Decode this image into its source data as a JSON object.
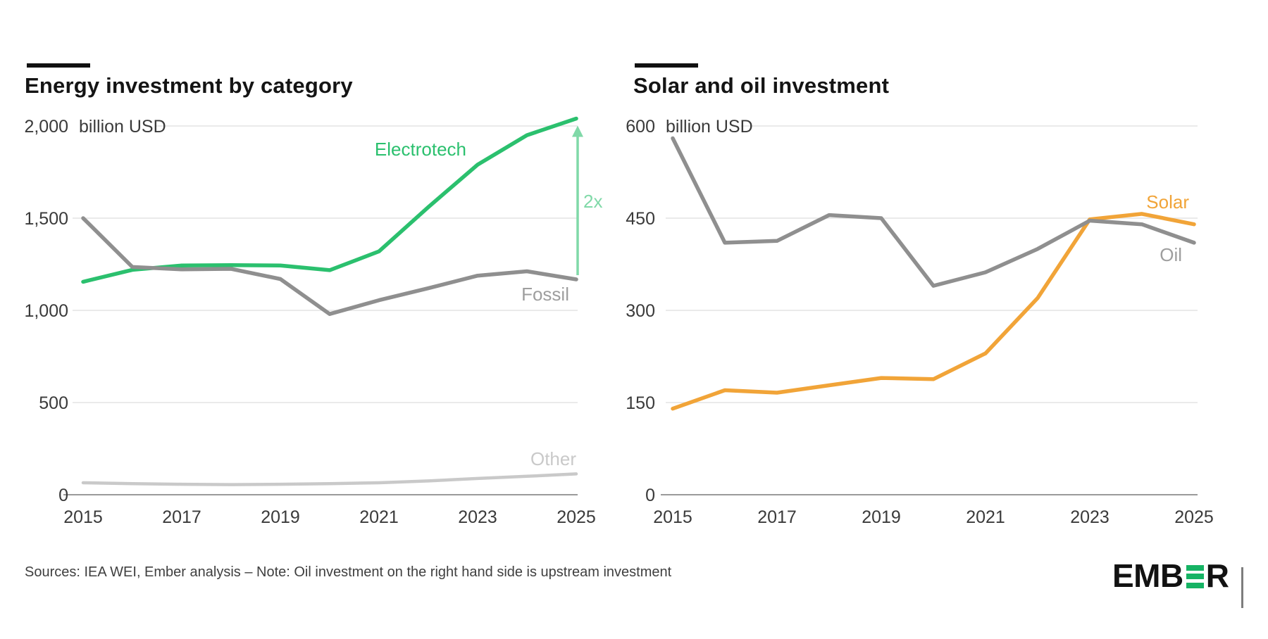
{
  "chart_data": [
    {
      "type": "line",
      "title": "Energy investment by category",
      "unit": "billion USD",
      "x": [
        2015,
        2016,
        2017,
        2018,
        2019,
        2020,
        2021,
        2022,
        2023,
        2024,
        2025
      ],
      "x_tick_labels": [
        "2015",
        "2017",
        "2019",
        "2021",
        "2023",
        "2025"
      ],
      "y_ticks": [
        {
          "v": 0,
          "label": "0"
        },
        {
          "v": 500,
          "label": "500"
        },
        {
          "v": 1000,
          "label": "1,000"
        },
        {
          "v": 1500,
          "label": "1,500"
        },
        {
          "v": 2000,
          "label": "2,000"
        }
      ],
      "ylim": [
        0,
        2000
      ],
      "grid": true,
      "legend_position": "inline-labels",
      "series": [
        {
          "name": "Electrotech",
          "line_color": "#2bc06e",
          "label_color": "#2bc06e",
          "values": [
            1155,
            1220,
            1243,
            1245,
            1243,
            1218,
            1320,
            1560,
            1790,
            1950,
            2040
          ]
        },
        {
          "name": "Fossil",
          "line_color": "#8f8f8f",
          "label_color": "#9e9e9e",
          "values": [
            1500,
            1235,
            1222,
            1225,
            1170,
            980,
            1055,
            1120,
            1188,
            1212,
            1168
          ]
        },
        {
          "name": "Other",
          "line_color": "#c9c9c9",
          "label_color": "#c9c9c9",
          "values": [
            65,
            60,
            57,
            55,
            57,
            60,
            65,
            75,
            88,
            100,
            113
          ]
        }
      ],
      "annotation": {
        "text": "2x",
        "color": "#80d9a8",
        "year": 2025,
        "from_series": "Fossil",
        "to_series": "Electrotech"
      }
    },
    {
      "type": "line",
      "title": "Solar and oil investment",
      "unit": "billion USD",
      "x": [
        2015,
        2016,
        2017,
        2018,
        2019,
        2020,
        2021,
        2022,
        2023,
        2024,
        2025
      ],
      "x_tick_labels": [
        "2015",
        "2017",
        "2019",
        "2021",
        "2023",
        "2025"
      ],
      "y_ticks": [
        {
          "v": 0,
          "label": "0"
        },
        {
          "v": 150,
          "label": "150"
        },
        {
          "v": 300,
          "label": "300"
        },
        {
          "v": 450,
          "label": "450"
        },
        {
          "v": 600,
          "label": "600"
        }
      ],
      "ylim": [
        0,
        600
      ],
      "grid": true,
      "legend_position": "inline-labels",
      "series": [
        {
          "name": "Solar",
          "line_color": "#f1a438",
          "label_color": "#f1a438",
          "values": [
            140,
            170,
            166,
            178,
            190,
            188,
            230,
            320,
            448,
            457,
            440
          ]
        },
        {
          "name": "Oil",
          "line_color": "#8f8f8f",
          "label_color": "#9e9e9e",
          "values": [
            580,
            410,
            413,
            455,
            450,
            340,
            362,
            400,
            446,
            440,
            410
          ]
        }
      ]
    }
  ],
  "footer": {
    "sources": "Sources: IEA WEI, Ember analysis – Note: Oil investment on the right hand side is upstream investment"
  },
  "logo": {
    "text": "EMBER",
    "part_before": "EMB",
    "part_after": "R"
  },
  "colors": {
    "electrotech_green": "#2bc06e",
    "annotation_light_green": "#80d9a8",
    "gray_line": "#8f8f8f",
    "light_gray_line": "#c9c9c9",
    "solar_orange": "#f1a438",
    "logo_green": "#16b364",
    "gridline": "#e3e3e3",
    "zero_axis": "#9a9a9a"
  }
}
